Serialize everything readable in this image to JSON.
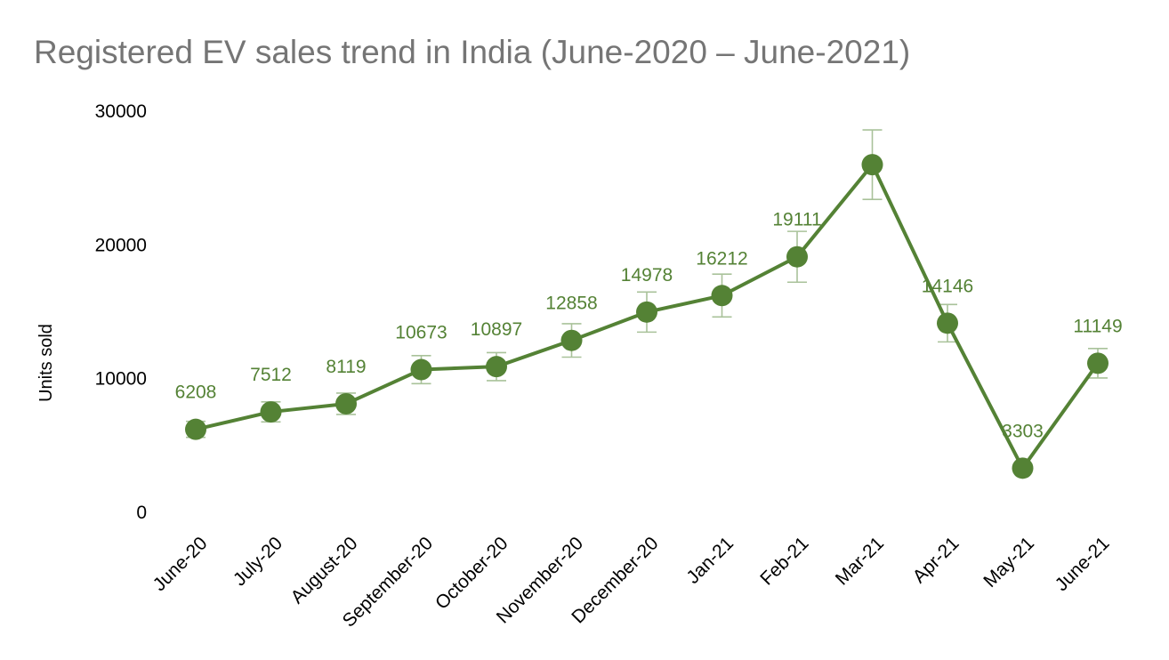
{
  "chart_data": {
    "type": "line",
    "title": "Registered EV sales trend in India (June-2020 – June-2021)",
    "xlabel": "",
    "ylabel": "Units sold",
    "ylim": [
      0,
      30000
    ],
    "yticks": [
      "0",
      "10000",
      "20000",
      "30000"
    ],
    "grid": false,
    "legend": "none",
    "categories": [
      "June-20",
      "July-20",
      "August-20",
      "September-20",
      "October-20",
      "November-20",
      "December-20",
      "Jan-21",
      "Feb-21",
      "Mar-21",
      "Apr-21",
      "May-21",
      "June-21"
    ],
    "series": [
      {
        "values": [
          6208,
          7512,
          8119,
          10673,
          10897,
          12858,
          14978,
          16212,
          19111,
          26000,
          14146,
          3303,
          11149
        ],
        "data_labels": [
          "6208",
          "7512",
          "8119",
          "10673",
          "10897",
          "12858",
          "14978",
          "16212",
          "19111",
          "",
          "14146",
          "3303",
          "11149"
        ],
        "error_bars": [
          600,
          750,
          800,
          1050,
          1050,
          1250,
          1500,
          1600,
          1900,
          2600,
          1400,
          300,
          1100
        ],
        "color": "#548235",
        "error_bar_color": "#a9c29a"
      }
    ]
  }
}
